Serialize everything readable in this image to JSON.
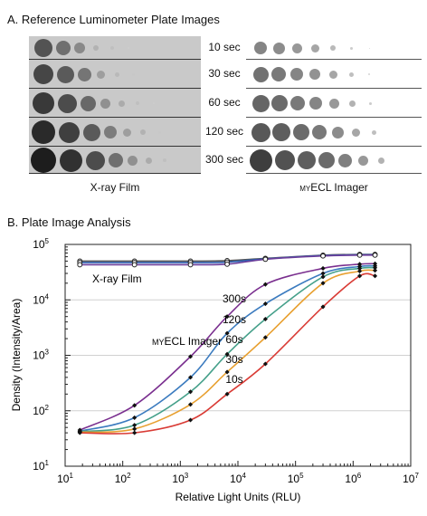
{
  "section_a": {
    "title": "A. Reference Luminometer Plate Images",
    "times": [
      "10 sec",
      "30 sec",
      "60 sec",
      "120 sec",
      "300 sec"
    ],
    "film_caption": "X-ray Film",
    "imager_caption_prefix": "my",
    "imager_caption_rest": "ECL Imager"
  },
  "chart_data": {
    "type": "line",
    "title": "B. Plate Image Analysis",
    "xlabel": "Relative Light Units (RLU)",
    "ylabel": "Density (Intensity/Area)",
    "xscale": "log",
    "yscale": "log",
    "xlim": [
      10,
      10000000
    ],
    "ylim": [
      10,
      100000
    ],
    "grid": "horizontal",
    "x_ticks": [
      {
        "base": "10",
        "exp": "1"
      },
      {
        "base": "10",
        "exp": "2"
      },
      {
        "base": "10",
        "exp": "3"
      },
      {
        "base": "10",
        "exp": "4"
      },
      {
        "base": "10",
        "exp": "5"
      },
      {
        "base": "10",
        "exp": "6"
      },
      {
        "base": "10",
        "exp": "7"
      }
    ],
    "y_ticks": [
      {
        "base": "10",
        "exp": "1"
      },
      {
        "base": "10",
        "exp": "2"
      },
      {
        "base": "10",
        "exp": "3"
      },
      {
        "base": "10",
        "exp": "4"
      },
      {
        "base": "10",
        "exp": "5"
      }
    ],
    "x": [
      18,
      160,
      1500,
      6500,
      30000,
      300000,
      1300000,
      2400000
    ],
    "series": [
      {
        "name": "X-ray Film",
        "color": "#555555",
        "marker": "open-circle",
        "values": [
          50000,
          50000,
          50000,
          51000,
          56000,
          64000,
          66000,
          66000
        ]
      },
      {
        "name": "X-ray Film",
        "color": "#2d5fb0",
        "marker": "open-circle",
        "values": [
          47000,
          47000,
          47000,
          48000,
          55000,
          63000,
          65000,
          65000
        ]
      },
      {
        "name": "X-ray Film",
        "color": "#6a3d9a",
        "marker": "open-circle",
        "values": [
          43000,
          43000,
          43000,
          44000,
          54000,
          62000,
          64000,
          64000
        ]
      },
      {
        "name": "300s",
        "color": "#7a2f8f",
        "marker": "dot",
        "values": [
          45,
          125,
          950,
          5000,
          19000,
          37000,
          44000,
          45000
        ]
      },
      {
        "name": "120s",
        "color": "#3b7bbf",
        "marker": "dot",
        "values": [
          43,
          75,
          400,
          2500,
          8500,
          30000,
          40000,
          41000
        ]
      },
      {
        "name": "60s",
        "color": "#45a08a",
        "marker": "dot",
        "values": [
          42,
          55,
          220,
          1050,
          4500,
          26000,
          37000,
          38000
        ]
      },
      {
        "name": "30s",
        "color": "#e8a030",
        "marker": "dot",
        "values": [
          41,
          47,
          130,
          500,
          2100,
          20000,
          33000,
          34000
        ]
      },
      {
        "name": "10s",
        "color": "#d93b35",
        "marker": "dot",
        "values": [
          40,
          40,
          68,
          200,
          700,
          7500,
          27000,
          27000
        ]
      }
    ],
    "series_labels": [
      "300s",
      "120s",
      "60s",
      "30s",
      "10s"
    ],
    "film_label": "X-ray Film",
    "imager_label_prefix": "my",
    "imager_label_rest": "ECL Imager"
  }
}
